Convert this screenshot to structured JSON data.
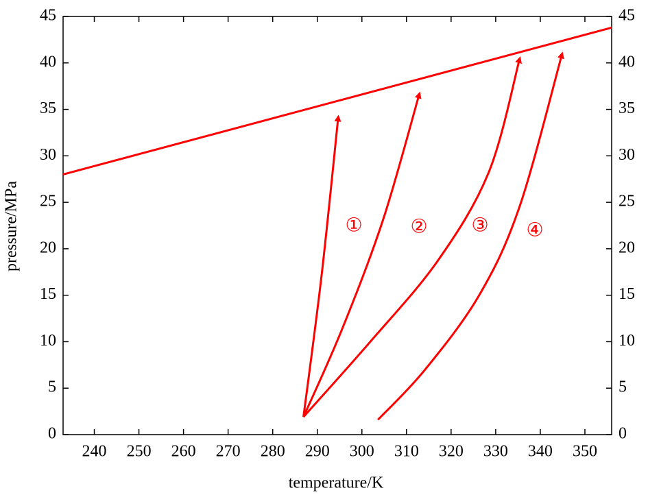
{
  "chart_data": {
    "type": "line",
    "xlabel": "temperature/K",
    "ylabel": "pressure/MPa",
    "xlim": [
      233,
      356
    ],
    "ylim": [
      0,
      45
    ],
    "xticks": [
      240,
      250,
      260,
      270,
      280,
      290,
      300,
      310,
      320,
      330,
      340,
      350
    ],
    "yticks": [
      0,
      5,
      10,
      15,
      20,
      25,
      30,
      35,
      40,
      45
    ],
    "annotations": [
      "①",
      "②",
      "③",
      "④"
    ],
    "series": [
      {
        "color": "#ff0000",
        "arrow": false,
        "x": [
          233,
          356
        ],
        "y": [
          28,
          43.8
        ]
      },
      {
        "color": "#ff0000",
        "arrow": true,
        "x": [
          286.9,
          291,
          294.7
        ],
        "y": [
          1.9,
          17.3,
          34.2
        ]
      },
      {
        "color": "#ff0000",
        "arrow": true,
        "x": [
          286.9,
          295.6,
          304.8,
          312.9
        ],
        "y": [
          1.9,
          11.4,
          23.2,
          36.7
        ]
      },
      {
        "color": "#ff0000",
        "arrow": true,
        "x": [
          286.9,
          301.7,
          317,
          328.5,
          335.4
        ],
        "y": [
          1.9,
          9.9,
          18.7,
          28.3,
          40.5
        ]
      },
      {
        "color": "#ff0000",
        "arrow": true,
        "x": [
          303.6,
          314,
          326.3,
          335.4,
          344.9
        ],
        "y": [
          1.6,
          6.9,
          15,
          24.6,
          41
        ]
      }
    ]
  }
}
